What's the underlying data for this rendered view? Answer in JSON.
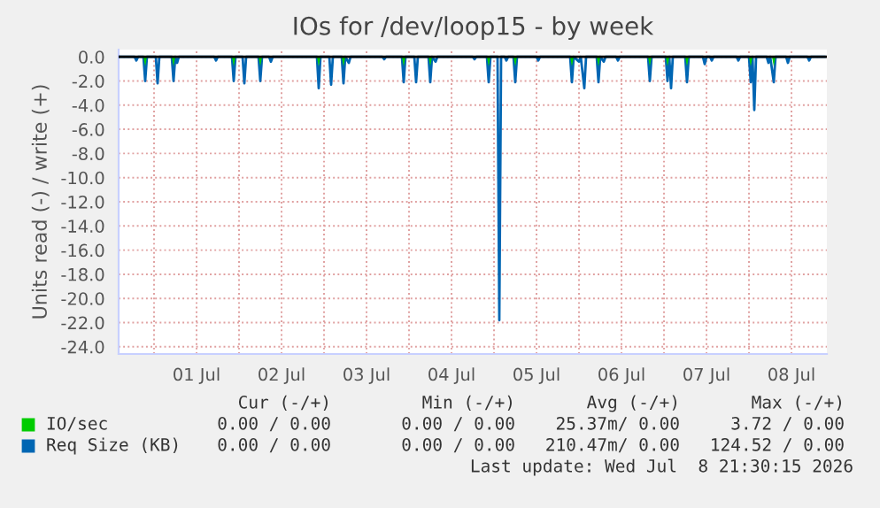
{
  "chart_data": {
    "type": "line",
    "title": "IOs for /dev/loop15 - by week",
    "ylabel": "Units read (-) / write (+)",
    "xlim": [
      "2026-06-30T14:00",
      "2026-07-08T22:00"
    ],
    "xticks": [
      {
        "value": "2026-07-01T00:00",
        "label": null
      },
      {
        "value": "2026-07-01T12:00",
        "label": "01 Jul"
      },
      {
        "value": "2026-07-02T00:00",
        "label": null
      },
      {
        "value": "2026-07-02T12:00",
        "label": "02 Jul"
      },
      {
        "value": "2026-07-03T00:00",
        "label": null
      },
      {
        "value": "2026-07-03T12:00",
        "label": "03 Jul"
      },
      {
        "value": "2026-07-04T00:00",
        "label": null
      },
      {
        "value": "2026-07-04T12:00",
        "label": "04 Jul"
      },
      {
        "value": "2026-07-05T00:00",
        "label": null
      },
      {
        "value": "2026-07-05T12:00",
        "label": "05 Jul"
      },
      {
        "value": "2026-07-06T00:00",
        "label": null
      },
      {
        "value": "2026-07-06T12:00",
        "label": "06 Jul"
      },
      {
        "value": "2026-07-07T00:00",
        "label": null
      },
      {
        "value": "2026-07-07T12:00",
        "label": "07 Jul"
      },
      {
        "value": "2026-07-08T00:00",
        "label": null
      },
      {
        "value": "2026-07-08T12:00",
        "label": "08 Jul"
      }
    ],
    "ylim": [
      -24.6,
      0.6
    ],
    "yticks": [
      {
        "value": -24,
        "label": "-24.0"
      },
      {
        "value": -22,
        "label": "-22.0"
      },
      {
        "value": -20,
        "label": "-20.0"
      },
      {
        "value": -18,
        "label": "-18.0"
      },
      {
        "value": -16,
        "label": "-16.0"
      },
      {
        "value": -14,
        "label": "-14.0"
      },
      {
        "value": -12,
        "label": "-12.0"
      },
      {
        "value": -10,
        "label": "-10.0"
      },
      {
        "value": -8,
        "label": "-8.0"
      },
      {
        "value": -6,
        "label": "-6.0"
      },
      {
        "value": -4,
        "label": "-4.0"
      },
      {
        "value": -2,
        "label": "-2.0"
      },
      {
        "value": 0,
        "label": "0.0"
      }
    ],
    "grid": true,
    "legend": "bottom left",
    "series": [
      {
        "name": "IO/sec",
        "color": "#00cc00",
        "type": "area",
        "x": [
          "2026-06-30T14:00",
          "2026-06-30T21:00",
          "2026-06-30T21:30",
          "2026-06-30T22:00",
          "2026-07-01T05:00",
          "2026-07-01T05:30",
          "2026-07-01T06:00",
          "2026-07-01T22:00",
          "2026-07-01T22:30",
          "2026-07-01T23:00",
          "2026-07-02T05:30",
          "2026-07-02T06:00",
          "2026-07-02T06:30",
          "2026-07-02T22:00",
          "2026-07-02T22:30",
          "2026-07-02T23:00",
          "2026-07-03T05:00",
          "2026-07-03T05:30",
          "2026-07-03T06:00",
          "2026-07-03T22:00",
          "2026-07-03T22:30",
          "2026-07-03T23:00",
          "2026-07-04T05:30",
          "2026-07-04T06:00",
          "2026-07-04T06:30",
          "2026-07-04T22:00",
          "2026-07-04T22:30",
          "2026-07-04T23:00",
          "2026-07-05T05:30",
          "2026-07-05T06:00",
          "2026-07-05T06:30",
          "2026-07-05T21:30",
          "2026-07-05T22:00",
          "2026-07-05T22:30",
          "2026-07-06T05:00",
          "2026-07-06T05:30",
          "2026-07-06T06:00",
          "2026-07-06T19:30",
          "2026-07-06T20:00",
          "2026-07-06T20:30",
          "2026-07-07T00:30",
          "2026-07-07T01:00",
          "2026-07-07T01:30",
          "2026-07-07T06:00",
          "2026-07-07T06:30",
          "2026-07-07T07:00",
          "2026-07-08T00:00",
          "2026-07-08T00:30",
          "2026-07-08T01:00",
          "2026-07-08T06:30",
          "2026-07-08T07:00",
          "2026-07-08T07:30",
          "2026-07-08T21:30"
        ],
        "values": [
          0,
          0,
          -0.8,
          0,
          0,
          -0.8,
          0,
          0,
          -0.8,
          0,
          0,
          -0.8,
          0,
          0,
          -0.8,
          0,
          0,
          -0.8,
          0,
          0,
          -0.8,
          0,
          0,
          -0.8,
          0,
          0,
          -0.8,
          0,
          0,
          -0.8,
          0,
          0,
          -0.8,
          0,
          0,
          -0.8,
          0,
          0,
          -0.8,
          0,
          0,
          -0.8,
          0,
          0,
          -0.8,
          0,
          0,
          -0.8,
          0,
          0,
          -0.8,
          0,
          0
        ]
      },
      {
        "name": "Req Size (KB)",
        "color": "#0066b3",
        "x": [
          "2026-06-30T14:00",
          "2026-06-30T18:30",
          "2026-06-30T19:00",
          "2026-06-30T19:30",
          "2026-06-30T21:00",
          "2026-06-30T21:30",
          "2026-06-30T22:00",
          "2026-07-01T00:30",
          "2026-07-01T01:00",
          "2026-07-01T01:30",
          "2026-07-01T05:00",
          "2026-07-01T05:30",
          "2026-07-01T06:00",
          "2026-07-01T06:30",
          "2026-07-01T07:00",
          "2026-07-01T17:00",
          "2026-07-01T17:30",
          "2026-07-01T18:00",
          "2026-07-01T22:00",
          "2026-07-01T22:30",
          "2026-07-01T23:00",
          "2026-07-02T01:00",
          "2026-07-02T01:30",
          "2026-07-02T02:00",
          "2026-07-02T05:30",
          "2026-07-02T06:00",
          "2026-07-02T06:30",
          "2026-07-02T08:30",
          "2026-07-02T09:00",
          "2026-07-02T09:30",
          "2026-07-02T22:00",
          "2026-07-02T22:30",
          "2026-07-02T23:00",
          "2026-07-03T01:30",
          "2026-07-03T02:00",
          "2026-07-03T02:30",
          "2026-07-03T05:00",
          "2026-07-03T05:30",
          "2026-07-03T06:00",
          "2026-07-03T07:00",
          "2026-07-03T07:30",
          "2026-07-03T16:30",
          "2026-07-03T17:00",
          "2026-07-03T17:30",
          "2026-07-03T22:00",
          "2026-07-03T22:30",
          "2026-07-03T23:00",
          "2026-07-04T01:30",
          "2026-07-04T02:00",
          "2026-07-04T02:30",
          "2026-07-04T05:30",
          "2026-07-04T06:00",
          "2026-07-04T06:30",
          "2026-07-04T07:30",
          "2026-07-04T08:00",
          "2026-07-04T18:00",
          "2026-07-04T18:30",
          "2026-07-04T19:00",
          "2026-07-04T22:00",
          "2026-07-04T22:30",
          "2026-07-04T23:00",
          "2026-07-05T01:00",
          "2026-07-05T01:30",
          "2026-07-05T02:00",
          "2026-07-05T03:00",
          "2026-07-05T03:30",
          "2026-07-05T04:00",
          "2026-07-05T05:30",
          "2026-07-05T06:00",
          "2026-07-05T06:30",
          "2026-07-05T12:00",
          "2026-07-05T12:30",
          "2026-07-05T13:00",
          "2026-07-05T21:30",
          "2026-07-05T22:00",
          "2026-07-05T22:30",
          "2026-07-06T00:00",
          "2026-07-06T00:30",
          "2026-07-06T01:30",
          "2026-07-06T02:00",
          "2026-07-06T05:00",
          "2026-07-06T05:30",
          "2026-07-06T06:00",
          "2026-07-06T07:00",
          "2026-07-06T07:30",
          "2026-07-06T10:30",
          "2026-07-06T11:00",
          "2026-07-06T11:30",
          "2026-07-06T19:30",
          "2026-07-06T20:00",
          "2026-07-06T20:30",
          "2026-07-07T00:30",
          "2026-07-07T01:00",
          "2026-07-07T01:30",
          "2026-07-07T02:00",
          "2026-07-07T02:30",
          "2026-07-07T06:00",
          "2026-07-07T06:30",
          "2026-07-07T07:00",
          "2026-07-07T11:00",
          "2026-07-07T11:30",
          "2026-07-07T12:00",
          "2026-07-07T13:00",
          "2026-07-07T13:30",
          "2026-07-07T14:00",
          "2026-07-07T20:30",
          "2026-07-07T21:00",
          "2026-07-07T21:30",
          "2026-07-08T00:00",
          "2026-07-08T00:30",
          "2026-07-08T01:00",
          "2026-07-08T01:30",
          "2026-07-08T02:00",
          "2026-07-08T05:00",
          "2026-07-08T05:30",
          "2026-07-08T06:00",
          "2026-07-08T07:00",
          "2026-07-08T07:30",
          "2026-07-08T10:30",
          "2026-07-08T11:00",
          "2026-07-08T11:30",
          "2026-07-08T16:30",
          "2026-07-08T17:00",
          "2026-07-08T17:30",
          "2026-07-08T21:30"
        ],
        "values": [
          0,
          0,
          -0.3,
          0,
          0,
          -2.0,
          0,
          0,
          -2.2,
          0,
          0,
          -2.0,
          0,
          -0.5,
          0,
          0,
          -0.3,
          0,
          0,
          -2.0,
          0,
          0,
          -2.2,
          0,
          0,
          -2.0,
          0,
          0,
          -0.4,
          0,
          0,
          -2.6,
          0,
          0,
          -2.3,
          0,
          0,
          -2.2,
          0,
          -0.5,
          0,
          0,
          -0.2,
          0,
          0,
          -2.1,
          0,
          0,
          -2.1,
          0,
          0,
          -2.1,
          0,
          -0.4,
          0,
          0,
          -0.2,
          0,
          0,
          -2.1,
          0,
          0,
          -21.8,
          0,
          0,
          -0.3,
          0,
          0,
          -2.1,
          0,
          0,
          -0.3,
          0,
          0,
          -2.1,
          0,
          -0.4,
          0,
          -2.6,
          0,
          0,
          -2.1,
          0,
          -0.4,
          0,
          0,
          -0.3,
          0,
          0,
          -2.0,
          0,
          0,
          -2.0,
          0,
          -2.6,
          0,
          0,
          -2.1,
          0,
          0,
          -0.6,
          0,
          0,
          -0.3,
          0,
          0,
          -0.3,
          0,
          0,
          -2.1,
          0,
          -4.4,
          0,
          0,
          -0.5,
          0,
          -2.1,
          0,
          0,
          -0.5,
          0,
          0,
          -0.3,
          0,
          0
        ]
      }
    ],
    "annotations": [
      "Cur (-/+)",
      "Min (-/+)",
      "Avg (-/+)",
      "Max (-/+)",
      "0.00 / 0.00",
      "0.00 / 0.00",
      "25.37m/ 0.00",
      "3.72 / 0.00",
      "0.00 / 0.00",
      "0.00 / 0.00",
      "210.47m/ 0.00",
      "124.52 / 0.00",
      "Last update: Wed Jul  8 21:30:15 2026"
    ]
  }
}
